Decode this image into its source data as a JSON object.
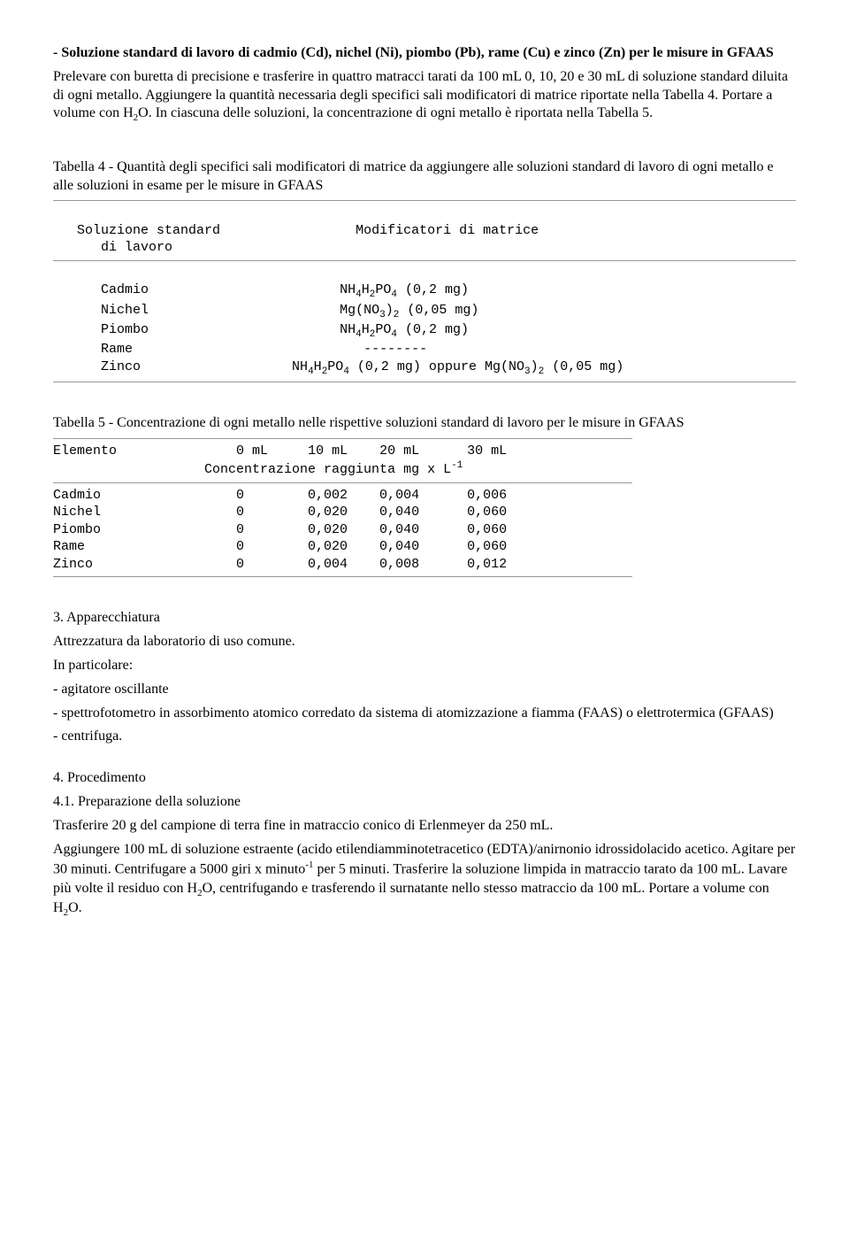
{
  "intro": {
    "heading": "- Soluzione standard di lavoro di cadmio (Cd), nichel (Ni), piombo (Pb), rame (Cu) e zinco (Zn) per le misure in GFAAS",
    "body1a": "Prelevare con buretta di precisione e trasferire in quattro matracci tarati da 100 mL 0, 10, 20 e 30 mL di soluzione standard diluita di ogni metallo. Aggiungere la quantità necessaria degli specifici sali modificatori di matrice riportate nella Tabella 4. Portare a volume con H",
    "body1b": "O. In ciascuna delle soluzioni, la concentrazione di ogni metallo è riportata nella Tabella 5."
  },
  "table4": {
    "caption": "Tabella 4 - Quantità degli specifici sali modificatori di matrice da aggiungere alle soluzioni standard di lavoro di ogni metallo e alle soluzioni in esame per le misure in GFAAS",
    "header_col1": "Soluzione standard",
    "header_col1b": "di lavoro",
    "header_col2": "Modificatori di matrice",
    "rows": {
      "cadmio_label": "Cadmio",
      "nichel_label": "Nichel",
      "piombo_label": "Piombo",
      "rame_label": "Rame",
      "zinco_label": "Zinco",
      "rame_val": "--------"
    }
  },
  "table5": {
    "caption": "Tabella 5 - Concentrazione di ogni metallo nelle rispettive soluzioni standard di lavoro per le misure in GFAAS",
    "h_elemento": "Elemento",
    "h_0": "0 mL",
    "h_10": "10 mL",
    "h_20": "20 mL",
    "h_30": "30 mL",
    "subheader_a": "Concentrazione raggiunta mg x L",
    "rows": [
      {
        "el": "Cadmio",
        "c0": "0",
        "c1": "0,002",
        "c2": "0,004",
        "c3": "0,006"
      },
      {
        "el": "Nichel",
        "c0": "0",
        "c1": "0,020",
        "c2": "0,040",
        "c3": "0,060"
      },
      {
        "el": "Piombo",
        "c0": "0",
        "c1": "0,020",
        "c2": "0,040",
        "c3": "0,060"
      },
      {
        "el": "Rame",
        "c0": "0",
        "c1": "0,020",
        "c2": "0,040",
        "c3": "0,060"
      },
      {
        "el": "Zinco",
        "c0": "0",
        "c1": "0,004",
        "c2": "0,008",
        "c3": "0,012"
      }
    ]
  },
  "section3": {
    "heading": "3. Apparecchiatura",
    "line1": "Attrezzatura da laboratorio di uso comune.",
    "line2": "In particolare:",
    "item1": "- agitatore oscillante",
    "item2": "- spettrofotometro in assorbimento atomico corredato da sistema di atomizzazione a fiamma (FAAS) o elettrotermica (GFAAS)",
    "item3": "- centrifuga."
  },
  "section4": {
    "heading": "4. Procedimento",
    "sub": "4.1. Preparazione della soluzione",
    "p1": "Trasferire 20 g del campione di terra fine in matraccio conico di Erlenmeyer da 250 mL.",
    "p2a": "Aggiungere 100 mL di soluzione estraente (acido etilendiamminotetracetico (EDTA)/anirnonio idrossidolacido acetico. Agitare per 30 minuti. Centrifugare a 5000 giri x minuto",
    "p2b": " per 5 minuti. Trasferire la soluzione limpida in matraccio tarato da 100 mL. Lavare più volte il residuo con H",
    "p2c": "O, centrifugando e trasferendo il surnatante nello stesso matraccio da 100 mL. Portare a volume con H",
    "p2d": "O."
  }
}
